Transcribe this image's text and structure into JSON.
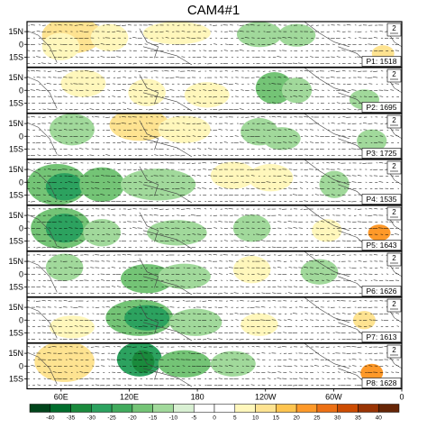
{
  "title": "CAM4#1",
  "lat_labels": [
    "15N",
    "0",
    "15S"
  ],
  "lon_labels": [
    "60E",
    "120E",
    "180",
    "120W",
    "60W",
    "0"
  ],
  "panels": [
    {
      "label": "P1: 1518",
      "ref_vector": "2"
    },
    {
      "label": "P2: 1695",
      "ref_vector": "2"
    },
    {
      "label": "P3: 1725",
      "ref_vector": "2"
    },
    {
      "label": "P4: 1535",
      "ref_vector": "2"
    },
    {
      "label": "P5: 1643",
      "ref_vector": "2"
    },
    {
      "label": "P6: 1626",
      "ref_vector": "2"
    },
    {
      "label": "P7: 1613",
      "ref_vector": "2"
    },
    {
      "label": "P8: 1628",
      "ref_vector": "2"
    }
  ],
  "colorbar": {
    "ticks": [
      "-40",
      "-35",
      "-30",
      "-25",
      "-20",
      "-15",
      "-10",
      "-5",
      "0",
      "5",
      "10",
      "15",
      "20",
      "25",
      "30",
      "35",
      "40"
    ],
    "colors": [
      "#00441b",
      "#006d2c",
      "#1a8a3c",
      "#2ca25f",
      "#41ab5d",
      "#74c476",
      "#a1d99b",
      "#d9f0d3",
      "#ffffff",
      "#ffffff",
      "#fff7bc",
      "#fee391",
      "#fec44f",
      "#fe9929",
      "#ec7014",
      "#cc4c02",
      "#993404",
      "#662506"
    ]
  }
}
